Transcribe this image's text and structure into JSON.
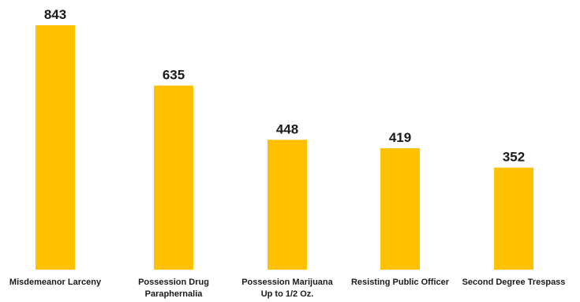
{
  "chart_data": {
    "type": "bar",
    "title": "",
    "xlabel": "",
    "ylabel": "",
    "categories": [
      "Misdemeanor Larceny",
      "Possession Drug Paraphernalia",
      "Possession Marijuana Up to 1/2 Oz.",
      "Resisting Public Officer",
      "Second Degree Trespass"
    ],
    "category_lines": [
      [
        "Misdemeanor Larceny"
      ],
      [
        "Possession Drug",
        "Paraphernalia"
      ],
      [
        "Possession Marijuana",
        "Up to 1/2 Oz."
      ],
      [
        "Resisting Public Officer"
      ],
      [
        "Second Degree Trespass"
      ]
    ],
    "values": [
      843,
      635,
      448,
      419,
      352
    ],
    "data_labels": [
      "843",
      "635",
      "448",
      "419",
      "352"
    ],
    "ylim": [
      0,
      843
    ],
    "grid": false,
    "legend": "none",
    "bar_color": "#FFC000"
  }
}
